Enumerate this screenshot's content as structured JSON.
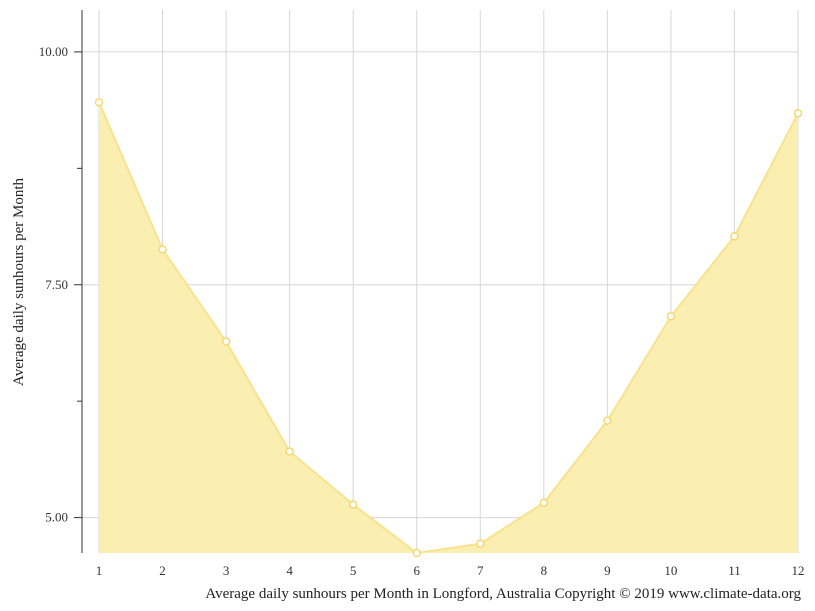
{
  "chart_data": {
    "type": "area",
    "title": "",
    "xlabel": "Average daily sunhours per Month in Longford, Australia Copyright © 2019 www.climate-data.org",
    "ylabel": "Average daily sunhours per Month",
    "x": [
      1,
      2,
      3,
      4,
      5,
      6,
      7,
      8,
      9,
      10,
      11,
      12
    ],
    "x_tick_labels": [
      "1",
      "2",
      "3",
      "4",
      "5",
      "6",
      "7",
      "8",
      "9",
      "10",
      "11",
      "12"
    ],
    "y_ticks": [
      5.0,
      7.5,
      10.0
    ],
    "y_tick_labels": [
      "5.00",
      "7.50",
      "10.00"
    ],
    "ylim": [
      4.62,
      10.45
    ],
    "xlim": [
      1,
      12
    ],
    "grid": true,
    "legend": "none",
    "series": [
      {
        "values": [
          9.46,
          7.88,
          6.89,
          5.71,
          5.14,
          4.62,
          4.72,
          5.16,
          6.04,
          7.16,
          8.02,
          9.34
        ]
      }
    ],
    "colors": {
      "fill": "#faeeb0",
      "line": "#f8e28e",
      "marker_fill": "#ffffff",
      "marker_stroke": "#f5d86e",
      "grid": "#d6d6d6",
      "axis": "#333333"
    }
  }
}
